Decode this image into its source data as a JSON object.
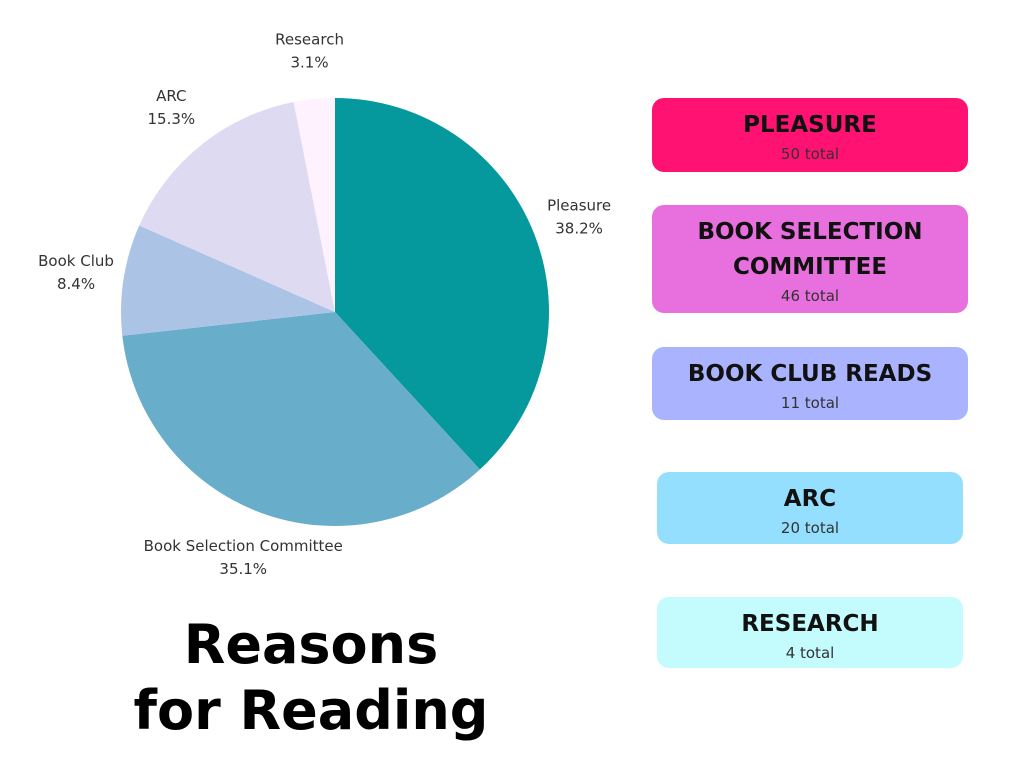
{
  "chart_data": {
    "type": "pie",
    "title": "Reasons for Reading",
    "categories": [
      "Pleasure",
      "Book Selection Committee",
      "Book Club",
      "ARC",
      "Research"
    ],
    "values": [
      38.2,
      35.1,
      8.4,
      15.3,
      3.1
    ],
    "value_labels": [
      "38.2%",
      "35.1%",
      "8.4%",
      "15.3%",
      "3.1%"
    ],
    "colors": [
      "#05989c",
      "#68aecb",
      "#abc3e5",
      "#dedaf2",
      "#fdf2fd"
    ]
  },
  "cards": [
    {
      "title": "PLEASURE",
      "total": "50 total",
      "color": "#ff1271"
    },
    {
      "title": "BOOK SELECTION COMMITTEE",
      "total": "46 total",
      "color": "#e76fde"
    },
    {
      "title": "BOOK CLUB READS",
      "total": "11 total",
      "color": "#aab3fd"
    },
    {
      "title": "ARC",
      "total": "20 total",
      "color": "#94dffd"
    },
    {
      "title": "RESEARCH",
      "total": "4 total",
      "color": "#c4fbfd"
    }
  ]
}
